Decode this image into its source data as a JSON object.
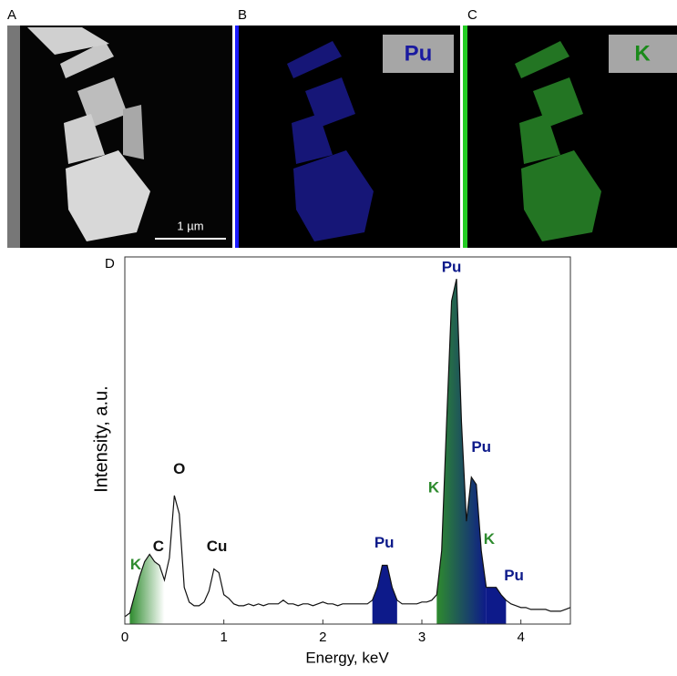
{
  "panels": {
    "a": "A",
    "b": "B",
    "c": "C",
    "d": "D"
  },
  "scale_bar": "1 µm",
  "map_labels": {
    "pu": "Pu",
    "k": "K"
  },
  "chart_data": {
    "type": "line",
    "xlabel": "Energy, keV",
    "ylabel": "Intensity, a.u.",
    "xlim": [
      0,
      4.5
    ],
    "xticks": [
      0,
      1,
      2,
      3,
      4
    ],
    "ylim": [
      0,
      100
    ],
    "color": "#111111",
    "x": [
      0,
      0.05,
      0.1,
      0.15,
      0.2,
      0.25,
      0.3,
      0.35,
      0.4,
      0.45,
      0.5,
      0.55,
      0.6,
      0.65,
      0.7,
      0.75,
      0.8,
      0.85,
      0.9,
      0.95,
      1,
      1.05,
      1.1,
      1.15,
      1.2,
      1.25,
      1.3,
      1.35,
      1.4,
      1.45,
      1.5,
      1.55,
      1.6,
      1.65,
      1.7,
      1.75,
      1.8,
      1.85,
      1.9,
      1.95,
      2,
      2.05,
      2.1,
      2.15,
      2.2,
      2.25,
      2.3,
      2.35,
      2.4,
      2.45,
      2.5,
      2.55,
      2.6,
      2.65,
      2.7,
      2.75,
      2.8,
      2.85,
      2.9,
      2.95,
      3,
      3.05,
      3.1,
      3.15,
      3.2,
      3.25,
      3.3,
      3.35,
      3.4,
      3.45,
      3.5,
      3.55,
      3.6,
      3.65,
      3.7,
      3.75,
      3.8,
      3.85,
      3.9,
      3.95,
      4,
      4.05,
      4.1,
      4.15,
      4.2,
      4.25,
      4.3,
      4.35,
      4.4,
      4.45,
      4.5
    ],
    "values": [
      2,
      3,
      8,
      13,
      17,
      19,
      17,
      16,
      12,
      18,
      35,
      30,
      10,
      6,
      5,
      5,
      6,
      9,
      15,
      14,
      8,
      7,
      5.5,
      5,
      5,
      5.5,
      5,
      5.5,
      5,
      5.5,
      5.5,
      5.5,
      6.5,
      5.5,
      5.5,
      5,
      5.5,
      5.5,
      5,
      5.5,
      6,
      5.5,
      5.5,
      5,
      5.5,
      5.5,
      5.5,
      5.5,
      5.5,
      5.5,
      6.5,
      10,
      16,
      16,
      10,
      6.5,
      5.5,
      5.5,
      5.5,
      5.5,
      6,
      6,
      6.5,
      8,
      20,
      55,
      88,
      94,
      55,
      28,
      40,
      38,
      20,
      10,
      10,
      10,
      8,
      6.5,
      5.5,
      5,
      4.5,
      4.5,
      4,
      4,
      4,
      4,
      3.5,
      3.5,
      3.5,
      4,
      4.5
    ],
    "fills": [
      {
        "range": [
          0.05,
          0.4
        ],
        "colors": [
          "#2e8b2e",
          "#ffffff"
        ]
      },
      {
        "range": [
          2.5,
          2.75
        ],
        "colors": [
          "#0d1a8a",
          "#0d1a8a"
        ]
      },
      {
        "range": [
          3.15,
          3.65
        ],
        "colors": [
          "#2e8b2e",
          "#0d1a8a"
        ]
      },
      {
        "range": [
          3.65,
          3.85
        ],
        "colors": [
          "#0d1a8a",
          "#0d1a8a"
        ]
      }
    ],
    "annotations": [
      {
        "text": "K",
        "x": 0.11,
        "y": 16,
        "color": "#2e8b2e"
      },
      {
        "text": "C",
        "x": 0.34,
        "y": 21,
        "color": "#111111"
      },
      {
        "text": "O",
        "x": 0.55,
        "y": 42,
        "color": "#111111"
      },
      {
        "text": "Cu",
        "x": 0.93,
        "y": 21,
        "color": "#111111"
      },
      {
        "text": "Pu",
        "x": 2.62,
        "y": 22,
        "color": "#0d1a8a"
      },
      {
        "text": "Pu",
        "x": 3.3,
        "y": 97,
        "color": "#0d1a8a"
      },
      {
        "text": "K",
        "x": 3.12,
        "y": 37,
        "color": "#2e8b2e"
      },
      {
        "text": "Pu",
        "x": 3.6,
        "y": 48,
        "color": "#0d1a8a"
      },
      {
        "text": "K",
        "x": 3.68,
        "y": 23,
        "color": "#2e8b2e"
      },
      {
        "text": "Pu",
        "x": 3.93,
        "y": 13,
        "color": "#0d1a8a"
      }
    ]
  }
}
